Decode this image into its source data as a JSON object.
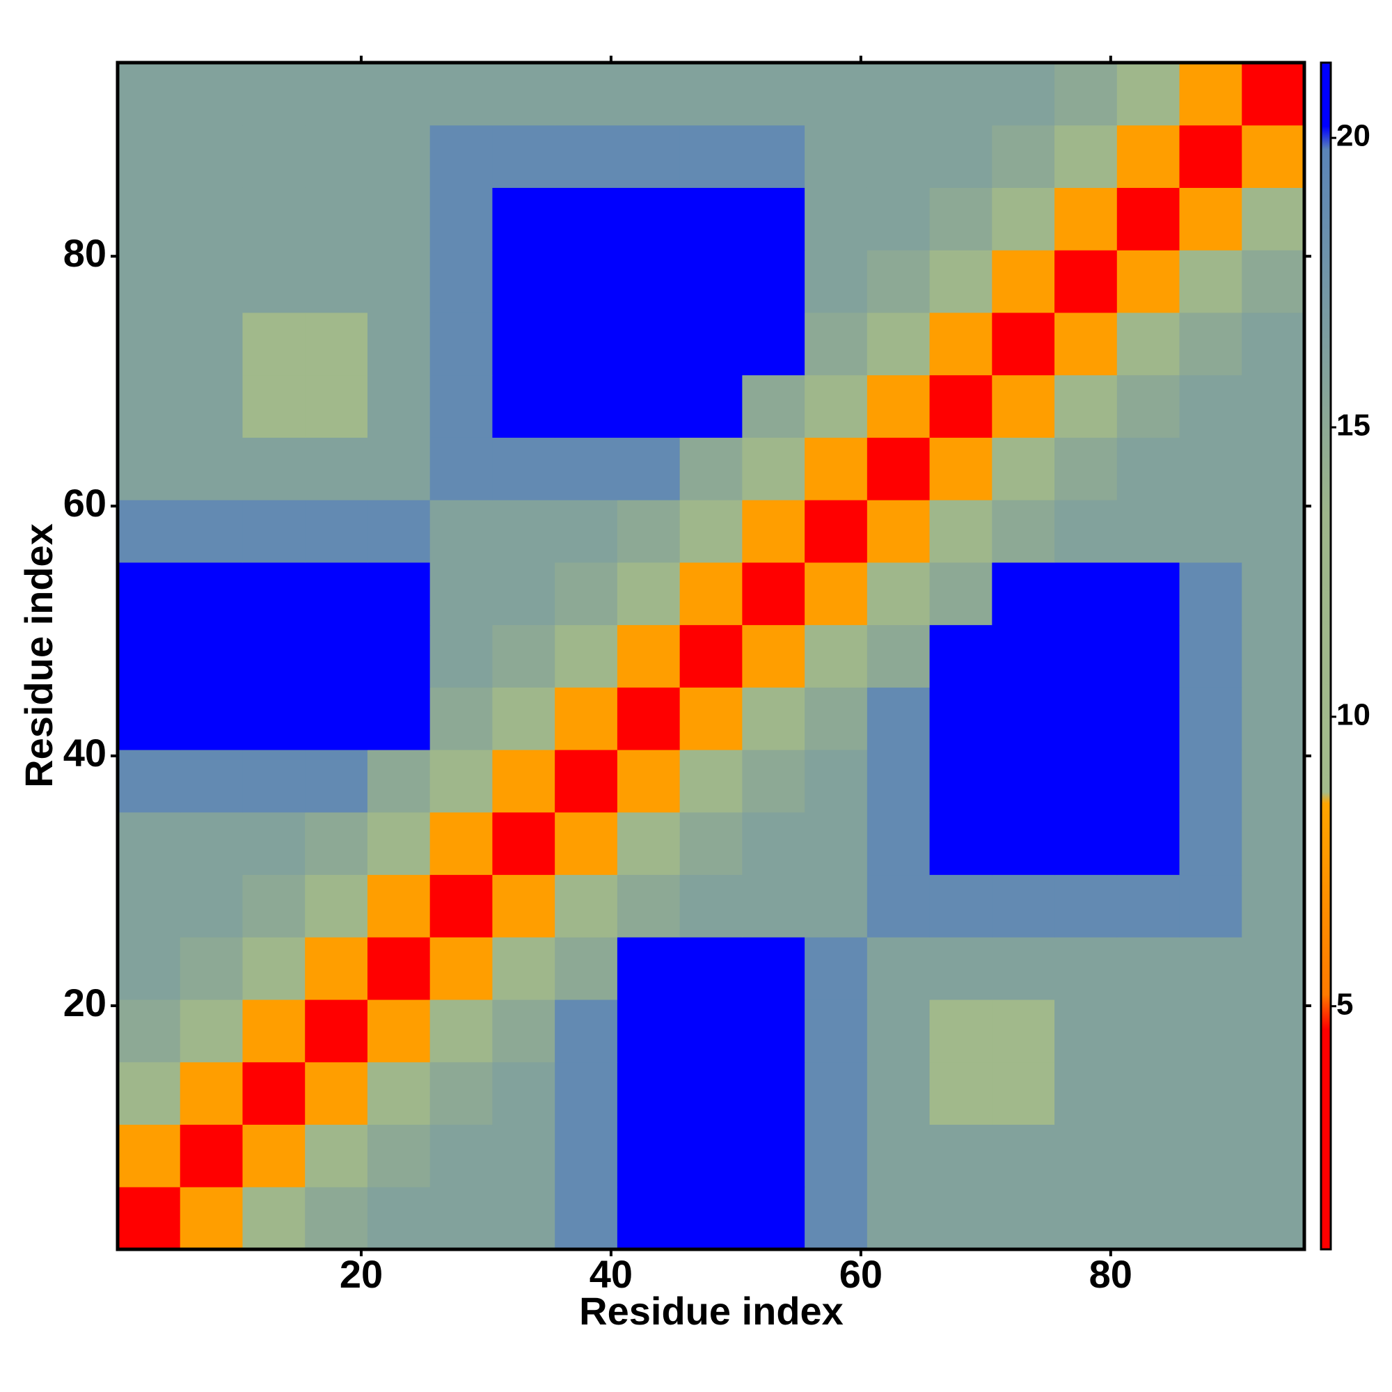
{
  "chart_data": {
    "type": "heatmap",
    "x_label": "Residue index",
    "y_label": "Residue index",
    "xbins": [
      0.5,
      5.5,
      10.5,
      15.5,
      20.5,
      25.5,
      30.5,
      35.5,
      40.5,
      45.5,
      50.5,
      55.5,
      60.5,
      65.5,
      70.5,
      75.5,
      80.5,
      85.5,
      90.5,
      95.5
    ],
    "ybins": [
      0.5,
      5.5,
      10.5,
      15.5,
      20.5,
      25.5,
      30.5,
      35.5,
      40.5,
      45.5,
      50.5,
      55.5,
      60.5,
      65.5,
      70.5,
      75.5,
      80.5,
      85.5,
      90.5,
      95.5
    ],
    "xlim": [
      0.5,
      95.5
    ],
    "ylim": [
      0.5,
      95.5
    ],
    "xticks": [
      20,
      40,
      60,
      80
    ],
    "yticks": [
      20,
      40,
      60,
      80
    ],
    "zlim": [
      0.8,
      21.3
    ],
    "zticks": [
      5,
      10,
      15,
      20
    ],
    "colorscale": [
      [
        0.8,
        "#ff0000"
      ],
      [
        4.6,
        "#ff0000"
      ],
      [
        5.2,
        "#ff7a00"
      ],
      [
        8.5,
        "#ffa500"
      ],
      [
        8.7,
        "#a3bb8c"
      ],
      [
        13.5,
        "#9db58a"
      ],
      [
        19.8,
        "#5a84b8"
      ],
      [
        20.2,
        "#0000ff"
      ],
      [
        21.3,
        "#0000ff"
      ]
    ],
    "values": [
      [
        3,
        8,
        12,
        15,
        16,
        16,
        16,
        19,
        21,
        21,
        21,
        19,
        16,
        16,
        16,
        16,
        16,
        16,
        16
      ],
      [
        8,
        3,
        8,
        12,
        15,
        16,
        16,
        19,
        21,
        21,
        21,
        19,
        16,
        16,
        16,
        16,
        16,
        16,
        16
      ],
      [
        12,
        8,
        3,
        8,
        12,
        15,
        16,
        19,
        21,
        21,
        21,
        19,
        16,
        10,
        10,
        16,
        16,
        16,
        16
      ],
      [
        15,
        12,
        8,
        3,
        8,
        12,
        15,
        19,
        21,
        21,
        21,
        19,
        16,
        10,
        10,
        16,
        16,
        16,
        16
      ],
      [
        16,
        15,
        12,
        8,
        3,
        8,
        12,
        15,
        21,
        21,
        21,
        19,
        16,
        16,
        16,
        16,
        16,
        16,
        16
      ],
      [
        16,
        16,
        15,
        12,
        8,
        3,
        8,
        12,
        15,
        16,
        16,
        16,
        19,
        19,
        19,
        19,
        19,
        19,
        16
      ],
      [
        16,
        16,
        16,
        15,
        12,
        8,
        3,
        8,
        12,
        15,
        16,
        16,
        19,
        21,
        21,
        21,
        21,
        19,
        16
      ],
      [
        19,
        19,
        19,
        19,
        15,
        12,
        8,
        3,
        8,
        12,
        15,
        16,
        19,
        21,
        21,
        21,
        21,
        19,
        16
      ],
      [
        21,
        21,
        21,
        21,
        21,
        15,
        12,
        8,
        3,
        8,
        12,
        15,
        19,
        21,
        21,
        21,
        21,
        19,
        16
      ],
      [
        21,
        21,
        21,
        21,
        21,
        16,
        15,
        12,
        8,
        3,
        8,
        12,
        15,
        21,
        21,
        21,
        21,
        19,
        16
      ],
      [
        21,
        21,
        21,
        21,
        21,
        16,
        16,
        15,
        12,
        8,
        3,
        8,
        12,
        15,
        21,
        21,
        21,
        19,
        16
      ],
      [
        19,
        19,
        19,
        19,
        19,
        16,
        16,
        16,
        15,
        12,
        8,
        3,
        8,
        12,
        15,
        16,
        16,
        16,
        16
      ],
      [
        16,
        16,
        16,
        16,
        16,
        19,
        19,
        19,
        19,
        15,
        12,
        8,
        3,
        8,
        12,
        15,
        16,
        16,
        16
      ],
      [
        16,
        16,
        10,
        10,
        16,
        19,
        21,
        21,
        21,
        21,
        15,
        12,
        8,
        3,
        8,
        12,
        15,
        16,
        16
      ],
      [
        16,
        16,
        10,
        10,
        16,
        19,
        21,
        21,
        21,
        21,
        21,
        15,
        12,
        8,
        3,
        8,
        12,
        15,
        16
      ],
      [
        16,
        16,
        16,
        16,
        16,
        19,
        21,
        21,
        21,
        21,
        21,
        16,
        15,
        12,
        8,
        3,
        8,
        12,
        15
      ],
      [
        16,
        16,
        16,
        16,
        16,
        19,
        21,
        21,
        21,
        21,
        21,
        16,
        16,
        15,
        12,
        8,
        3,
        8,
        12
      ],
      [
        16,
        16,
        16,
        16,
        16,
        19,
        19,
        19,
        19,
        19,
        19,
        16,
        16,
        16,
        15,
        12,
        8,
        3,
        8
      ],
      [
        16,
        16,
        16,
        16,
        16,
        16,
        16,
        16,
        16,
        16,
        16,
        16,
        16,
        16,
        16,
        15,
        12,
        8,
        3
      ]
    ]
  }
}
